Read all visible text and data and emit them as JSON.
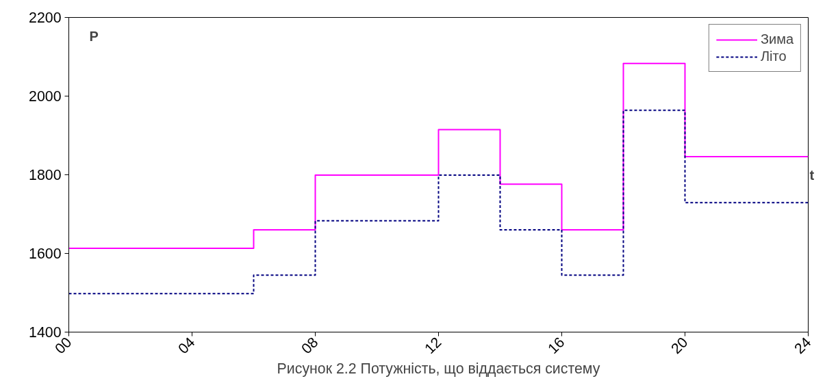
{
  "chart_data": {
    "type": "step",
    "title": "Рисунок 2.2 Потужність, що віддається систему",
    "ylabel": "P",
    "xlabel": "t",
    "x": [
      0,
      6,
      8,
      12,
      14,
      16,
      18,
      20,
      24
    ],
    "series": [
      {
        "name": "Зима",
        "color": "#ff00ff",
        "line_style": "solid",
        "values": [
          1613,
          1660,
          1799,
          1915,
          1776,
          1660,
          2083,
          1846,
          1846
        ]
      },
      {
        "name": "Літо",
        "color": "#000080",
        "line_style": "dashed",
        "values": [
          1498,
          1545,
          1683,
          1799,
          1660,
          1545,
          1964,
          1729,
          1729
        ]
      }
    ],
    "xlim": [
      0,
      24
    ],
    "xticks": [
      {
        "value": 0,
        "label": "00"
      },
      {
        "value": 4,
        "label": "04"
      },
      {
        "value": 8,
        "label": "08"
      },
      12,
      16,
      20,
      24
    ],
    "ylim": [
      1400,
      2200
    ],
    "yticks": [
      1400,
      1600,
      1800,
      2000,
      2200
    ],
    "grid": false,
    "legend": "top right"
  }
}
